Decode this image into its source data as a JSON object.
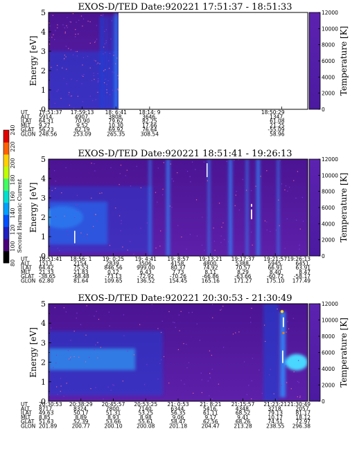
{
  "chart_data": [
    {
      "type": "heatmap",
      "title": "EXOS-D/TED",
      "date_label": "Date:920221",
      "time_range": "17:51:37 - 18:51:33",
      "ylabel": "Energy [eV]",
      "ylim": [
        0,
        5
      ],
      "y_ticks": [
        "0",
        "1",
        "2",
        "3",
        "4",
        "5"
      ],
      "right_label": "Temperature [K]",
      "right_lim": [
        0,
        12000
      ],
      "right_ticks": [
        "0",
        "2000",
        "4000",
        "6000",
        "8000",
        "10000",
        "12000"
      ],
      "data_end_fraction": 0.27,
      "ephemeris": {
        "row_labels": [
          "UT",
          "ALT",
          "ILAT",
          "MLT",
          "GLAT",
          "GLON"
        ],
        "columns": [
          [
            "17:51:37",
            "5914.",
            "64.31",
            "9.27",
            "56.23",
            "248.56"
          ],
          [
            "17:59:13",
            "4907.",
            "70.90",
            "9.52",
            "62.19",
            "253.09"
          ],
          [
            "18: 6:41",
            "3808.",
            "79.62",
            "10.30",
            "69.92",
            "265.35"
          ],
          [
            "18:14: 9",
            "3646.",
            "82.25",
            "17.66",
            "76.64",
            "308.54"
          ],
          [
            "18:50:29",
            "1347.",
            "61.08",
            "21.25",
            "-55.09",
            "58.96"
          ]
        ],
        "column_fractions": [
          0.0,
          0.13,
          0.26,
          0.39,
          0.9
        ]
      }
    },
    {
      "type": "heatmap",
      "title": "EXOS-D/TED",
      "date_label": "Date:920221",
      "time_range": "18:51:41 - 19:26:13",
      "ylabel": "Energy [eV]",
      "ylim": [
        0,
        5
      ],
      "y_ticks": [
        "0",
        "1",
        "2",
        "3",
        "4",
        "5"
      ],
      "right_label": "Temperature [K]",
      "right_lim": [
        0,
        12000
      ],
      "right_ticks": [
        "0",
        "2000",
        "4000",
        "6000",
        "8000",
        "10000",
        "12000"
      ],
      "ephemeris": {
        "row_labels": [
          "UT",
          "ALT",
          "ILAT",
          "MLT",
          "GLAT",
          "GLON"
        ],
        "columns": [
          [
            "18:51:41",
            "1513.",
            "64.42",
            "21.33",
            "-38.65",
            "62.80"
          ],
          [
            "18:56: 1",
            "2154.",
            "75.53",
            "21.83",
            "-68.48",
            "81.64"
          ],
          [
            "19: 0:25",
            "2839.",
            "846.56",
            "0.12",
            "-73.13",
            "109.65"
          ],
          [
            "19: 4:41",
            "3506.",
            "999.00",
            "6.43",
            "-72.92",
            "136.52"
          ],
          [
            "19: 8:57",
            "4158.",
            "80.37",
            "7.73",
            "-70.26",
            "154.45"
          ],
          [
            "19:13:21",
            "4800.",
            "74.92",
            "8.11",
            "-66.86",
            "165.16"
          ],
          [
            "19:17:37",
            "5388.",
            "70.57",
            "8.29",
            "-63.66",
            "171.27"
          ],
          [
            "19:21:57",
            "5945.",
            "66.91",
            "8.40",
            "-60.72",
            "175.10"
          ],
          [
            "19:26:13",
            "6451.",
            "63.91",
            "8.47",
            "-58.17",
            "177.49"
          ]
        ]
      }
    },
    {
      "type": "heatmap",
      "title": "EXOS-D/TED",
      "date_label": "Date:920221",
      "time_range": "20:30:53 - 21:30:49",
      "ylabel": "Energy [eV]",
      "ylim": [
        0,
        5
      ],
      "y_ticks": [
        "0",
        "1",
        "2",
        "3",
        "4",
        "5"
      ],
      "right_label": "Temperature [K]",
      "right_lim": [
        0,
        12000
      ],
      "right_ticks": [
        "0",
        "2000",
        "4000",
        "6000",
        "8000",
        "10000",
        "12000"
      ],
      "ephemeris": {
        "row_labels": [
          "UT",
          "ALT",
          "ILAT",
          "MLT",
          "GLAT",
          "GLON"
        ],
        "columns": [
          [
            "20:30:53",
            "8717.",
            "49.63",
            "8.85",
            "51.63",
            "201.89"
          ],
          [
            "20:38:29",
            "8324.",
            "50.17",
            "8.89",
            "52.39",
            "200.77"
          ],
          [
            "20:45:57",
            "7800.",
            "51.31",
            "8.93",
            "53.66",
            "200.10"
          ],
          [
            "20:53:25",
            "7140.",
            "53.25",
            "8.98",
            "55.61",
            "200.08"
          ],
          [
            "21: 0:53",
            "6344.",
            "56.35",
            "9.06",
            "58.47",
            "201.18"
          ],
          [
            "21: 8:21",
            "5416.",
            "61.11",
            "9.17",
            "62.56",
            "204.47"
          ],
          [
            "21:15:57",
            "4348.",
            "68.52",
            "9.41",
            "68.26",
            "213.28"
          ],
          [
            "21:23:21",
            "3218.",
            "79.13",
            "10.17",
            "74.51",
            "238.55"
          ],
          [
            "21:30:49",
            "2057.",
            "81.17",
            "18.12",
            "72.97",
            "296.38"
          ]
        ]
      }
    }
  ],
  "colorbar": {
    "label": "Second Harmonic Current",
    "ticks": [
      "80",
      "100",
      "120",
      "140",
      "160",
      "180",
      "200",
      "220",
      "240"
    ],
    "colors": [
      "#000000",
      "#4a007a",
      "#2020c0",
      "#0050ff",
      "#00a0ff",
      "#00e0d0",
      "#40ff60",
      "#c0ff00",
      "#ffd000",
      "#ff6000",
      "#e00000"
    ]
  },
  "colors": {
    "background_fill": "#5a1aa6",
    "band_low": "#1f3fd6",
    "band_mid": "#2f8cff",
    "band_high": "#49d7ff"
  }
}
